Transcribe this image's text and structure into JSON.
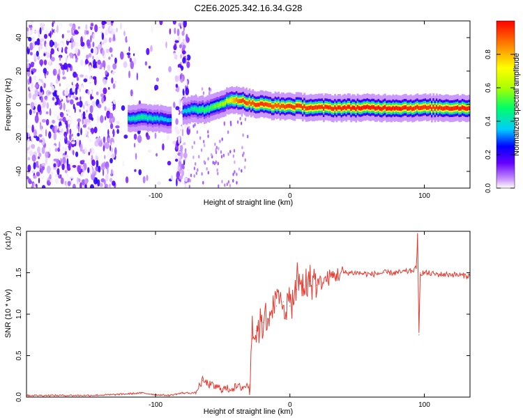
{
  "title": "C2E6.2025.342.16.34.G28",
  "chart_data": [
    {
      "type": "heatmap",
      "xlabel": "Height of straight line (km)",
      "ylabel": "Frequency (Hz)",
      "xlim": [
        -196,
        134
      ],
      "ylim": [
        -50,
        50
      ],
      "x_ticks": [
        -100,
        0,
        100
      ],
      "y_ticks": [
        -40,
        -20,
        0,
        20,
        40
      ],
      "colorbar": {
        "label": "Normalized spectral amplitude",
        "range": [
          0,
          1
        ],
        "ticks": [
          0.0,
          0.2,
          0.4,
          0.6,
          0.8
        ],
        "colors": [
          "#ffffff",
          "#cc99ff",
          "#6600ff",
          "#0000ff",
          "#00ccff",
          "#00ff66",
          "#aaff00",
          "#ffff00",
          "#ff8800",
          "#ff0000"
        ]
      },
      "ridge": {
        "x": [
          -120,
          -110,
          -100,
          -90,
          -85,
          -80,
          -75,
          -70,
          -65,
          -60,
          -55,
          -50,
          -45,
          -40,
          -35,
          -30,
          -25,
          -20,
          -10,
          0,
          20,
          50,
          80,
          100,
          134
        ],
        "y": [
          -8,
          -8,
          -8,
          -9,
          -7,
          -4,
          -3,
          -3,
          -3,
          -3,
          -1,
          1,
          2,
          3,
          2,
          1,
          0,
          0,
          -1,
          -1,
          -2,
          -2,
          -2,
          -2,
          -2
        ],
        "peak_amplitude": [
          0.4,
          0.45,
          0.4,
          0.35,
          0.3,
          0.35,
          0.4,
          0.45,
          0.5,
          0.5,
          0.55,
          0.6,
          0.7,
          0.85,
          0.95,
          0.9,
          0.95,
          0.95,
          0.9,
          0.95,
          0.95,
          0.98,
          0.98,
          0.95,
          0.98
        ]
      },
      "noise_region_km": [
        -196,
        -75
      ]
    },
    {
      "type": "line",
      "xlabel": "Height of straight line (km)",
      "ylabel": "SNR (10 * v/v)",
      "y_multiplier": "(x10",
      "y_multiplier_exp": "4",
      "xlim": [
        -196,
        134
      ],
      "ylim": [
        0,
        2.0
      ],
      "x_ticks": [
        -100,
        0,
        100
      ],
      "y_ticks": [
        0.0,
        0.5,
        1.0,
        1.5,
        2.0
      ],
      "color": "#e8382e",
      "series": [
        {
          "x": [
            -196,
            -150,
            -130,
            -120,
            -110,
            -100,
            -90,
            -80,
            -70,
            -65,
            -60,
            -55,
            -50,
            -45,
            -40,
            -35,
            -30,
            -28,
            -25,
            -20,
            -15,
            -10,
            -5,
            0,
            5,
            10,
            15,
            20,
            30,
            40,
            50,
            60,
            70,
            80,
            90,
            94,
            95,
            96,
            97,
            100,
            110,
            120,
            134
          ],
          "y": [
            0.02,
            0.02,
            0.03,
            0.04,
            0.05,
            0.03,
            0.02,
            0.05,
            0.05,
            0.2,
            0.15,
            0.12,
            0.1,
            0.1,
            0.12,
            0.12,
            0.15,
            0.7,
            0.8,
            0.9,
            1.0,
            1.1,
            1.15,
            1.1,
            1.3,
            1.35,
            1.4,
            1.35,
            1.45,
            1.5,
            1.5,
            1.48,
            1.5,
            1.5,
            1.52,
            1.55,
            1.95,
            0.75,
            1.5,
            1.5,
            1.48,
            1.48,
            1.46
          ]
        }
      ]
    }
  ]
}
